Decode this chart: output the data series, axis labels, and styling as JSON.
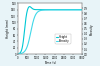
{
  "title": "",
  "xlabel": "Time (s)",
  "ylabel_left": "Height (mm)",
  "ylabel_right": "Porosity",
  "x_max": 3500,
  "height_color": "#00c8d4",
  "porosity_color": "#40d8e8",
  "background_color": "#e8f4f8",
  "plot_bg_color": "#ffffff",
  "legend_labels": [
    "Height",
    "Porosity"
  ],
  "ylim_left": [
    0,
    160
  ],
  "ylim_right": [
    0,
    1.0
  ],
  "x_ticks": [
    0,
    500,
    1000,
    1500,
    2000,
    2500,
    3000,
    3500
  ],
  "y_ticks_left": [
    0,
    20,
    40,
    60,
    80,
    100,
    120,
    140,
    160
  ],
  "y_ticks_right": [
    0.0,
    0.1,
    0.2,
    0.3,
    0.4,
    0.5,
    0.6,
    0.7,
    0.8,
    0.9
  ]
}
